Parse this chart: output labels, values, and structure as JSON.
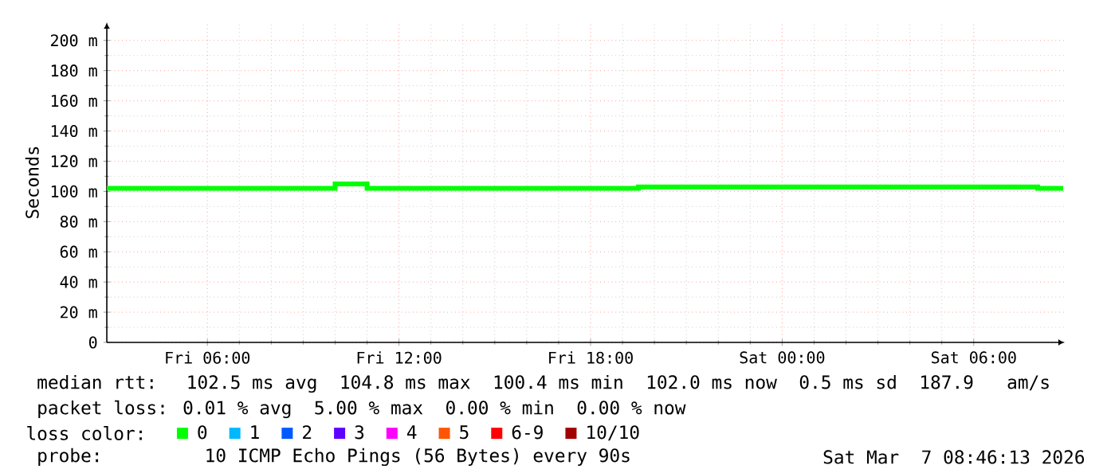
{
  "chart_data": {
    "type": "step",
    "ylabel": "Seconds",
    "legend_title": "loss color:",
    "legend": "bottom",
    "grid": true,
    "x": [
      "2026-03-06T02:51",
      "2026-03-06T10:00",
      "2026-03-06T11:00",
      "2026-03-06T19:30",
      "2026-03-07T08:00",
      "2026-03-07T08:48"
    ],
    "xlim": [
      "2026-03-06T02:51",
      "2026-03-07T08:51"
    ],
    "xticks": [
      {
        "value": "2026-03-06T06:00",
        "label": "Fri 06:00"
      },
      {
        "value": "2026-03-06T12:00",
        "label": "Fri 12:00"
      },
      {
        "value": "2026-03-06T18:00",
        "label": "Fri 18:00"
      },
      {
        "value": "2026-03-07T00:00",
        "label": "Sat 00:00"
      },
      {
        "value": "2026-03-07T06:00",
        "label": "Sat 06:00"
      }
    ],
    "ylim": [
      0,
      212
    ],
    "yticks": [
      {
        "value": 0,
        "label": "0"
      },
      {
        "value": 20,
        "label": "20 m"
      },
      {
        "value": 40,
        "label": "40 m"
      },
      {
        "value": 60,
        "label": "60 m"
      },
      {
        "value": 80,
        "label": "80 m"
      },
      {
        "value": 100,
        "label": "100 m"
      },
      {
        "value": 120,
        "label": "120 m"
      },
      {
        "value": 140,
        "label": "140 m"
      },
      {
        "value": 160,
        "label": "160 m"
      },
      {
        "value": 180,
        "label": "180 m"
      },
      {
        "value": 200,
        "label": "200 m"
      }
    ],
    "series": [
      {
        "name": "0",
        "color": "#00ff00",
        "values": [
          102,
          105,
          102,
          103,
          102,
          102
        ]
      },
      {
        "name": "1",
        "color": "#00b8ff",
        "values": [
          null,
          null,
          null,
          null,
          null,
          null
        ]
      },
      {
        "name": "2",
        "color": "#0059ff",
        "values": [
          null,
          null,
          null,
          null,
          null,
          null
        ]
      },
      {
        "name": "3",
        "color": "#5e00ff",
        "values": [
          null,
          null,
          null,
          null,
          null,
          null
        ]
      },
      {
        "name": "4",
        "color": "#ff00ff",
        "values": [
          null,
          null,
          null,
          null,
          null,
          null
        ]
      },
      {
        "name": "5",
        "color": "#ff5500",
        "values": [
          null,
          null,
          null,
          null,
          null,
          null
        ]
      },
      {
        "name": "6-9",
        "color": "#ff0000",
        "values": [
          null,
          null,
          null,
          null,
          null,
          null
        ]
      },
      {
        "name": "10/10",
        "color": "#a10000",
        "values": [
          null,
          null,
          null,
          null,
          null,
          null
        ]
      }
    ],
    "annotations": [
      "median rtt:  102.5 ms avg  104.8 ms max  100.4 ms min  102.0 ms now  0.5 ms sd  187.9   am/s",
      "packet loss: 0.01 % avg  5.00 % max  0.00 % min  0.00 % now",
      "probe:       10 ICMP Echo Pings (56 Bytes) every 90s",
      "Sat Mar  7 08:46:13 2026"
    ]
  }
}
